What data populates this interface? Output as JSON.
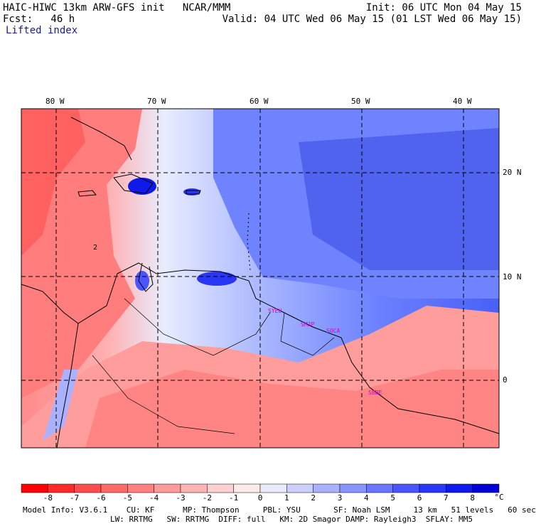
{
  "header": {
    "title": "HAIC-HIWC 13km ARW-GFS init",
    "org": "NCAR/MMM",
    "fcst": "Fcst:   46 h",
    "field": "Lifted index",
    "init": "Init: 06 UTC Mon 04 May 15",
    "valid": "Valid: 04 UTC Wed 06 May 15 (01 LST Wed 06 May 15)"
  },
  "map": {
    "lon_labels": [
      "80 W",
      "70 W",
      "60 W",
      "50 W",
      "40 W"
    ],
    "lat_labels": [
      "20 N",
      "10 N",
      "0"
    ],
    "contour_label": "2",
    "stations": [
      "SYEU",
      "SMJP",
      "SOCA",
      "SBBE"
    ]
  },
  "colorbar": {
    "unit": "°C",
    "ticks": [
      "-8",
      "-7",
      "-6",
      "-5",
      "-4",
      "-3",
      "-2",
      "-1",
      "0",
      "1",
      "2",
      "3",
      "4",
      "5",
      "6",
      "7",
      "8"
    ],
    "colors": [
      "#ff0000",
      "#ff2a2a",
      "#ff4d4d",
      "#ff6868",
      "#ff8080",
      "#ff9b9b",
      "#ffb3b3",
      "#ffd0d0",
      "#ffeaea",
      "#eaeaff",
      "#ccd0ff",
      "#aab2ff",
      "#8a94ff",
      "#6a76ff",
      "#4a55ff",
      "#2a36f5",
      "#0f1aea",
      "#0000d5"
    ]
  },
  "footer": {
    "line1": "Model Info: V3.6.1    CU: KF      MP: Thompson     PBL: YSU       SF: Noah LSM     13 km   51 levels   60 sec",
    "line2": "LW: RRTMG   SW: RRTMG  DIFF: full   KM: 2D Smagor DAMP: Rayleigh3  SFLAY: MM5"
  }
}
